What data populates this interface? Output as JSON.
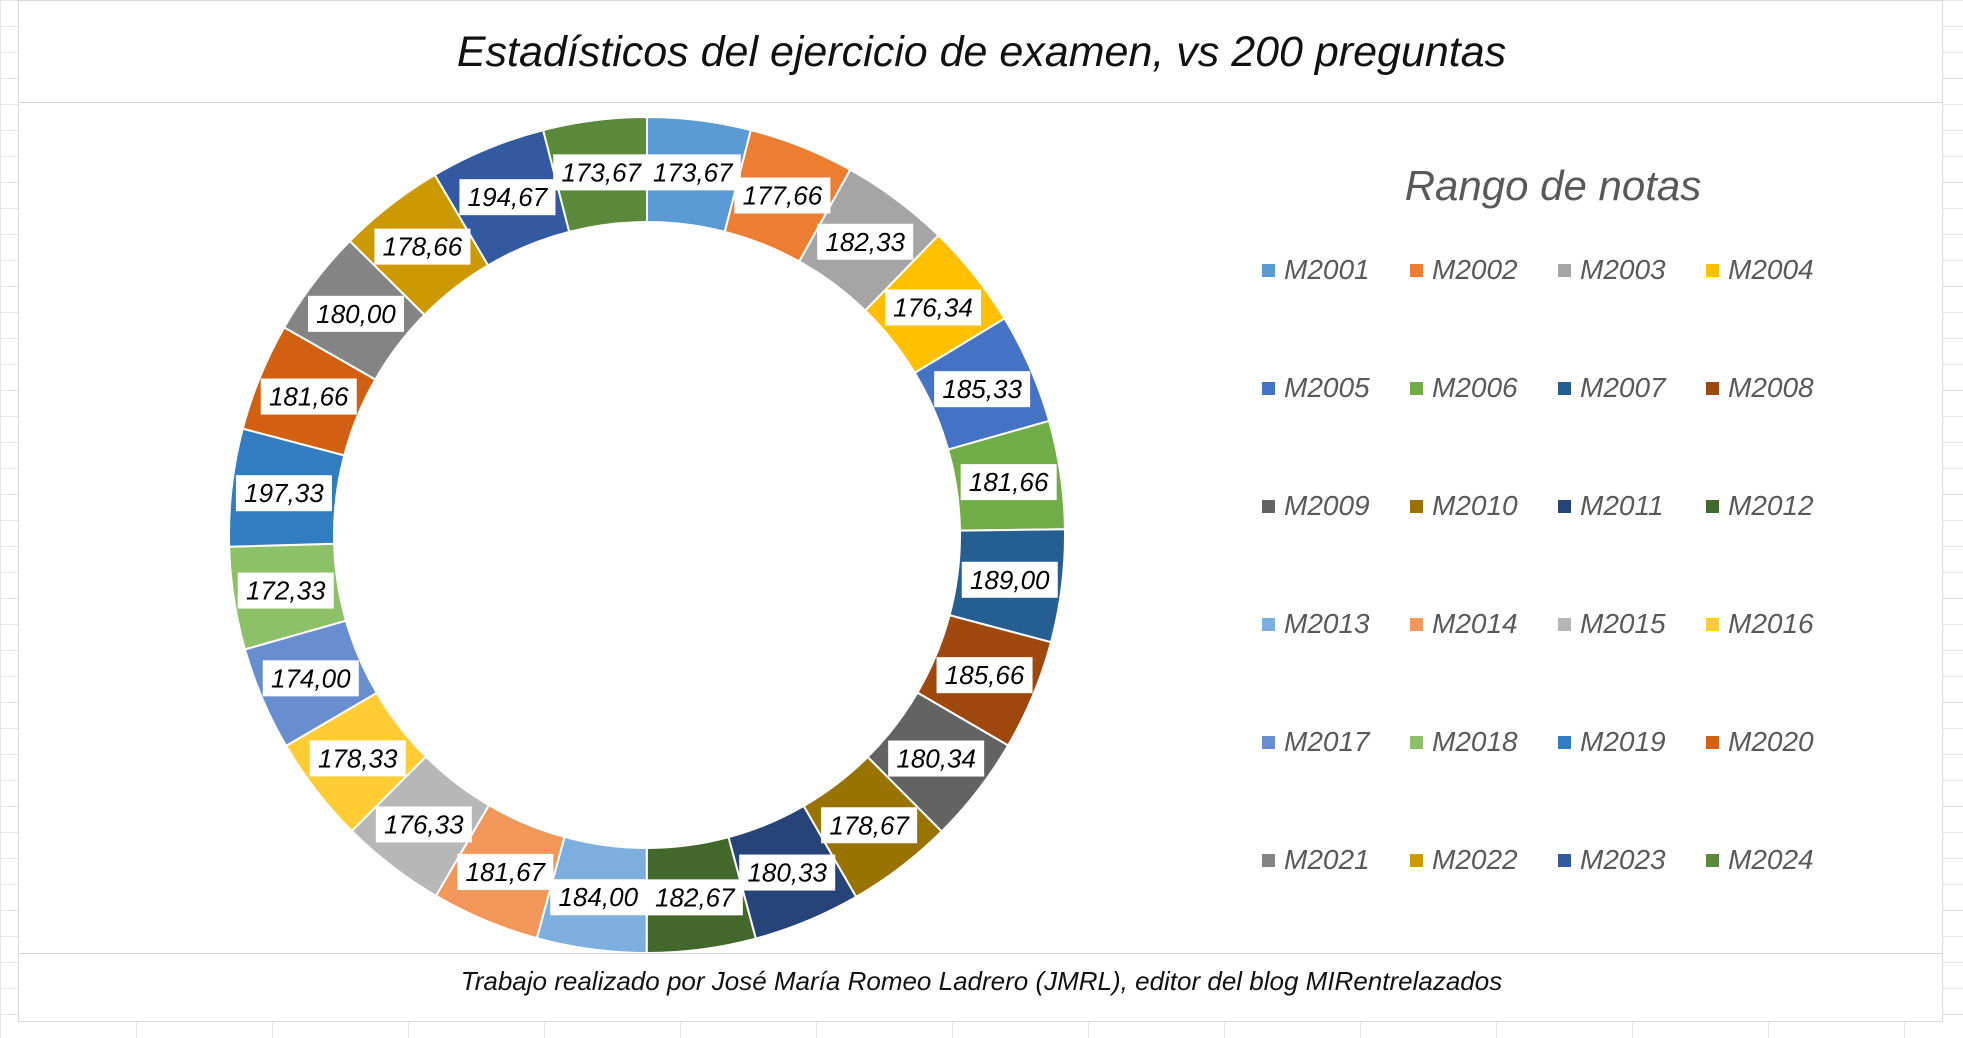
{
  "title": "Estadísticos del ejercicio de examen, vs 200 preguntas",
  "legend_title": "Rango de notas",
  "footer": "Trabajo realizado por José María Romeo Ladrero (JMRL), editor del blog MIRentrelazados",
  "chart_data": {
    "type": "donut",
    "title": "Estadísticos del ejercicio de examen, vs 200 preguntas",
    "legend_title": "Rango de notas",
    "legend_position": "right",
    "series": [
      {
        "name": "M2001",
        "value": 173.67,
        "label": "173,67",
        "color": "#5B9BD5"
      },
      {
        "name": "M2002",
        "value": 177.66,
        "label": "177,66",
        "color": "#ED7D31"
      },
      {
        "name": "M2003",
        "value": 182.33,
        "label": "182,33",
        "color": "#A5A5A5"
      },
      {
        "name": "M2004",
        "value": 176.34,
        "label": "176,34",
        "color": "#FFC000"
      },
      {
        "name": "M2005",
        "value": 185.33,
        "label": "185,33",
        "color": "#4472C4"
      },
      {
        "name": "M2006",
        "value": 181.66,
        "label": "181,66",
        "color": "#70AD47"
      },
      {
        "name": "M2007",
        "value": 189.0,
        "label": "189,00",
        "color": "#255E91"
      },
      {
        "name": "M2008",
        "value": 185.66,
        "label": "185,66",
        "color": "#9E480E"
      },
      {
        "name": "M2009",
        "value": 180.34,
        "label": "180,34",
        "color": "#636363"
      },
      {
        "name": "M2010",
        "value": 178.67,
        "label": "178,67",
        "color": "#997300"
      },
      {
        "name": "M2011",
        "value": 180.33,
        "label": "180,33",
        "color": "#264478"
      },
      {
        "name": "M2012",
        "value": 182.67,
        "label": "182,67",
        "color": "#43682B"
      },
      {
        "name": "M2013",
        "value": 184.0,
        "label": "184,00",
        "color": "#7CAFDD"
      },
      {
        "name": "M2014",
        "value": 181.67,
        "label": "181,67",
        "color": "#F1975A"
      },
      {
        "name": "M2015",
        "value": 176.33,
        "label": "176,33",
        "color": "#B7B7B7"
      },
      {
        "name": "M2016",
        "value": 178.33,
        "label": "178,33",
        "color": "#FFCD33"
      },
      {
        "name": "M2017",
        "value": 174.0,
        "label": "174,00",
        "color": "#698ED0"
      },
      {
        "name": "M2018",
        "value": 172.33,
        "label": "172,33",
        "color": "#8CC168"
      },
      {
        "name": "M2019",
        "value": 197.33,
        "label": "197,33",
        "color": "#327DC2"
      },
      {
        "name": "M2020",
        "value": 181.66,
        "label": "181,66",
        "color": "#D26012"
      },
      {
        "name": "M2021",
        "value": 180.0,
        "label": "180,00",
        "color": "#848484"
      },
      {
        "name": "M2022",
        "value": 178.66,
        "label": "178,66",
        "color": "#CC9A00"
      },
      {
        "name": "M2023",
        "value": 194.67,
        "label": "194,67",
        "color": "#335AA1"
      },
      {
        "name": "M2024",
        "value": 173.67,
        "label": "173,67",
        "color": "#5A8A39"
      }
    ]
  }
}
